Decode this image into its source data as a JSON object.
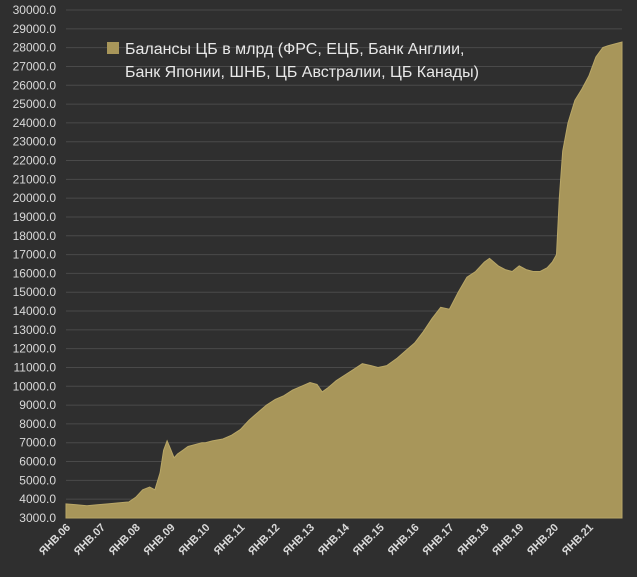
{
  "colors": {
    "background": "#2f2f2f",
    "grid": "#4a4a4a",
    "area": "#a8965a",
    "area_stroke": "#b9a767",
    "text": "#d9d9d9"
  },
  "legend": {
    "line1": "Балансы ЦБ в млрд (ФРС, ЕЦБ, Банк Англии,",
    "line2": "Банк Японии, ШНБ, ЦБ Австралии, ЦБ Канады)"
  },
  "chart_data": {
    "type": "area",
    "grid": true,
    "legend_position": "top-left",
    "ylim": [
      3000,
      30000
    ],
    "yticks": [
      3000,
      4000,
      5000,
      6000,
      7000,
      8000,
      9000,
      10000,
      11000,
      12000,
      13000,
      14000,
      15000,
      16000,
      17000,
      18000,
      19000,
      20000,
      21000,
      22000,
      23000,
      24000,
      25000,
      26000,
      27000,
      28000,
      29000,
      30000
    ],
    "ytick_labels": [
      "3000.0",
      "4000.0",
      "5000.0",
      "6000.0",
      "7000.0",
      "8000.0",
      "9000.0",
      "10000.0",
      "11000.0",
      "12000.0",
      "13000.0",
      "14000.0",
      "15000.0",
      "16000.0",
      "17000.0",
      "18000.0",
      "19000.0",
      "20000.0",
      "21000.0",
      "22000.0",
      "23000.0",
      "24000.0",
      "25000.0",
      "26000.0",
      "27000.0",
      "28000.0",
      "29000.0",
      "30000.0"
    ],
    "xlim": [
      2006.0,
      2021.95
    ],
    "xticks": [
      2006,
      2007,
      2008,
      2009,
      2010,
      2011,
      2012,
      2013,
      2014,
      2015,
      2016,
      2017,
      2018,
      2019,
      2020,
      2021
    ],
    "xtick_labels": [
      "ЯНВ.06",
      "ЯНВ.07",
      "ЯНВ.08",
      "ЯНВ.09",
      "ЯНВ.10",
      "ЯНВ.11",
      "ЯНВ.12",
      "ЯНВ.13",
      "ЯНВ.14",
      "ЯНВ.15",
      "ЯНВ.16",
      "ЯНВ.17",
      "ЯНВ.18",
      "ЯНВ.19",
      "ЯНВ.20",
      "ЯНВ.21"
    ],
    "series": [
      {
        "name": "Балансы ЦБ в млрд (ФРС, ЕЦБ, Банк Англии, Банк Японии, ШНБ, ЦБ Австралии, ЦБ Канады)",
        "x": [
          2006.0,
          2006.3,
          2006.6,
          2006.9,
          2007.2,
          2007.5,
          2007.8,
          2008.0,
          2008.2,
          2008.4,
          2008.55,
          2008.7,
          2008.8,
          2008.9,
          2008.97,
          2009.1,
          2009.2,
          2009.35,
          2009.5,
          2009.7,
          2009.9,
          2010.0,
          2010.2,
          2010.5,
          2010.75,
          2011.0,
          2011.25,
          2011.5,
          2011.75,
          2012.0,
          2012.25,
          2012.5,
          2012.75,
          2013.0,
          2013.2,
          2013.35,
          2013.5,
          2013.75,
          2014.0,
          2014.25,
          2014.5,
          2014.75,
          2014.95,
          2015.2,
          2015.5,
          2015.75,
          2016.0,
          2016.25,
          2016.5,
          2016.75,
          2017.0,
          2017.25,
          2017.5,
          2017.75,
          2018.0,
          2018.15,
          2018.4,
          2018.6,
          2018.8,
          2019.0,
          2019.2,
          2019.4,
          2019.6,
          2019.8,
          2019.95,
          2020.07,
          2020.15,
          2020.25,
          2020.4,
          2020.6,
          2020.8,
          2021.0,
          2021.2,
          2021.4,
          2021.55,
          2021.75,
          2021.95
        ],
        "values": [
          3750,
          3700,
          3650,
          3700,
          3750,
          3800,
          3850,
          4100,
          4500,
          4650,
          4500,
          5400,
          6600,
          7100,
          6800,
          6200,
          6400,
          6600,
          6800,
          6900,
          7000,
          7000,
          7100,
          7200,
          7400,
          7700,
          8200,
          8600,
          9000,
          9300,
          9500,
          9800,
          10000,
          10200,
          10100,
          9700,
          9900,
          10300,
          10600,
          10900,
          11200,
          11100,
          11000,
          11100,
          11500,
          11900,
          12300,
          12900,
          13600,
          14200,
          14100,
          15000,
          15800,
          16100,
          16600,
          16800,
          16400,
          16200,
          16100,
          16400,
          16200,
          16100,
          16100,
          16300,
          16600,
          17000,
          20000,
          22500,
          24000,
          25200,
          25800,
          26500,
          27500,
          28000,
          28100,
          28200,
          28300
        ]
      }
    ]
  }
}
